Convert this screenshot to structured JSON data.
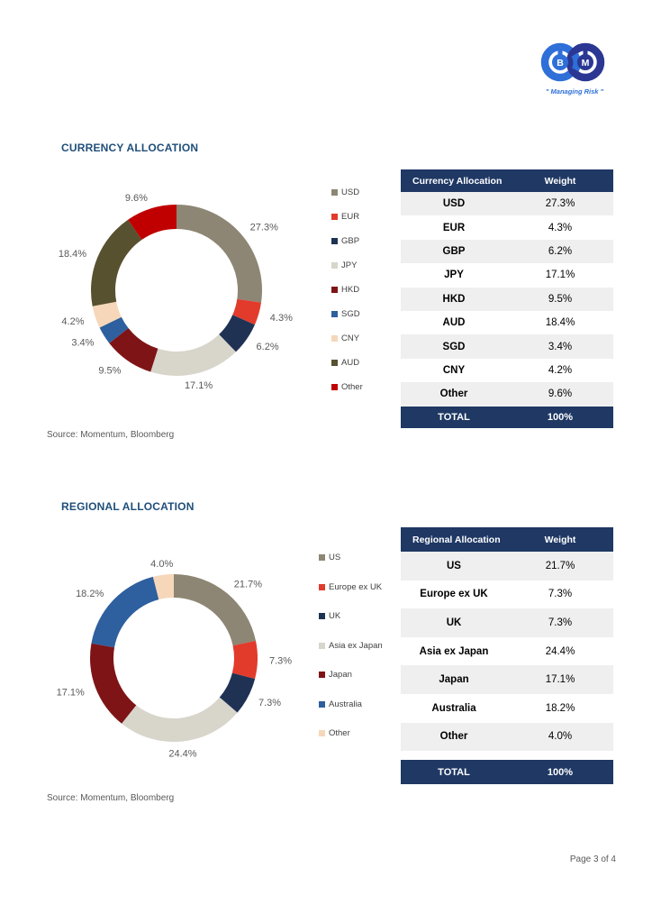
{
  "logo": {
    "letter_left": "B",
    "letter_right": "M",
    "tagline": "\" Managing Risk \"",
    "color_left": "#2E6FD8",
    "color_right": "#2B3793"
  },
  "footer": {
    "page_label": "Page 3 of 4"
  },
  "colors": {
    "table_navy": "#1F3864",
    "title_blue": "#1F4E79",
    "alt_row": "#EFEFEF",
    "muted_text": "#595959"
  },
  "sections": [
    {
      "title": "CURRENCY ALLOCATION",
      "source": "Source: Momentum, Bloomberg",
      "table": {
        "headers": [
          "Currency Allocation",
          "Weight"
        ],
        "rows": [
          [
            "USD",
            "27.3%"
          ],
          [
            "EUR",
            "4.3%"
          ],
          [
            "GBP",
            "6.2%"
          ],
          [
            "JPY",
            "17.1%"
          ],
          [
            "HKD",
            "9.5%"
          ],
          [
            "AUD",
            "18.4%"
          ],
          [
            "SGD",
            "3.4%"
          ],
          [
            "CNY",
            "4.2%"
          ],
          [
            "Other",
            "9.6%"
          ]
        ],
        "total": [
          "TOTAL",
          "100%"
        ]
      }
    },
    {
      "title": "REGIONAL ALLOCATION",
      "source": "Source: Momentum, Bloomberg",
      "table": {
        "headers": [
          "Regional Allocation",
          "Weight"
        ],
        "rows": [
          [
            "US",
            "21.7%"
          ],
          [
            "Europe ex UK",
            "7.3%"
          ],
          [
            "UK",
            "7.3%"
          ],
          [
            "Asia ex Japan",
            "24.4%"
          ],
          [
            "Japan",
            "17.1%"
          ],
          [
            "Australia",
            "18.2%"
          ],
          [
            "Other",
            "4.0%"
          ]
        ],
        "total": [
          "TOTAL",
          "100%"
        ]
      }
    }
  ],
  "chart_data": [
    {
      "type": "pie",
      "subtype": "donut",
      "title": "Currency Allocation",
      "labels": [
        "USD",
        "EUR",
        "GBP",
        "JPY",
        "HKD",
        "SGD",
        "CNY",
        "AUD",
        "Other"
      ],
      "values": [
        27.3,
        4.3,
        6.2,
        17.1,
        9.5,
        3.4,
        4.2,
        18.4,
        9.6
      ],
      "data_labels": [
        "27.3%",
        "4.3%",
        "6.2%",
        "17.1%",
        "9.5%",
        "3.4%",
        "4.2%",
        "18.4%",
        "9.6%"
      ],
      "colors": [
        "#8D8674",
        "#E23B2C",
        "#1F3254",
        "#D8D5CB",
        "#7E1416",
        "#2E5F9E",
        "#F6D7BA",
        "#57512F",
        "#C00000"
      ],
      "start_angle_deg": 0,
      "direction": "clockwise",
      "legend_position": "right"
    },
    {
      "type": "pie",
      "subtype": "donut",
      "title": "Regional Allocation",
      "labels": [
        "US",
        "Europe ex UK",
        "UK",
        "Asia ex Japan",
        "Japan",
        "Australia",
        "Other"
      ],
      "values": [
        21.7,
        7.3,
        7.3,
        24.4,
        17.1,
        18.2,
        4.0
      ],
      "data_labels": [
        "21.7%",
        "7.3%",
        "7.3%",
        "24.4%",
        "17.1%",
        "18.2%",
        "4.0%"
      ],
      "colors": [
        "#8D8674",
        "#E23B2C",
        "#1F3254",
        "#D8D5CB",
        "#7E1416",
        "#2E5F9E",
        "#F6D7BA"
      ],
      "start_angle_deg": 0,
      "direction": "clockwise",
      "legend_position": "right"
    }
  ]
}
